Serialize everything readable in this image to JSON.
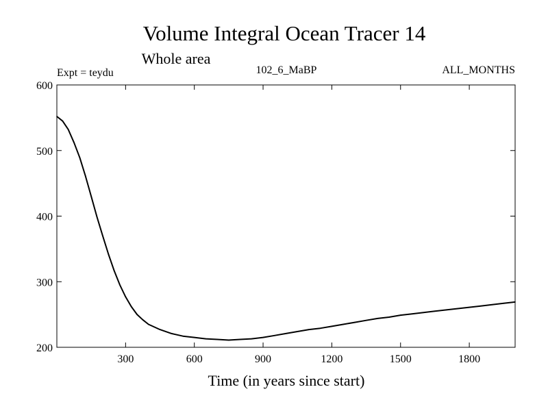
{
  "chart_data": {
    "type": "line",
    "title": "Volume Integral Ocean Tracer 14",
    "subtitle": "Whole area",
    "annotations": {
      "left": "Expt = teydu",
      "center": "102_6_MaBP",
      "right": "ALL_MONTHS"
    },
    "xlabel": "Time (in years since start)",
    "ylabel": "",
    "xlim": [
      0,
      2000
    ],
    "ylim": [
      200,
      600
    ],
    "x_ticks": [
      300,
      600,
      900,
      1200,
      1500,
      1800
    ],
    "x_tick_labels": [
      "300",
      "600",
      "900",
      "1200",
      "1500",
      "1800"
    ],
    "y_ticks": [
      200,
      300,
      400,
      500,
      600
    ],
    "y_tick_labels": [
      "200",
      "300",
      "400",
      "500",
      "600"
    ],
    "grid": false,
    "series": [
      {
        "name": "Ocean Tracer 14",
        "color": "#000000",
        "x": [
          0,
          25,
          50,
          75,
          100,
          125,
          150,
          175,
          200,
          225,
          250,
          275,
          300,
          325,
          350,
          375,
          400,
          450,
          500,
          550,
          600,
          650,
          700,
          750,
          800,
          850,
          900,
          950,
          1000,
          1050,
          1100,
          1150,
          1200,
          1250,
          1300,
          1350,
          1400,
          1450,
          1500,
          1550,
          1600,
          1650,
          1700,
          1750,
          1800,
          1850,
          1900,
          1950,
          2000
        ],
        "y": [
          552,
          545,
          532,
          512,
          489,
          461,
          430,
          399,
          370,
          342,
          317,
          295,
          277,
          262,
          250,
          242,
          235,
          227,
          221,
          217,
          215,
          213,
          212,
          211,
          212,
          213,
          215,
          218,
          221,
          224,
          227,
          229,
          232,
          235,
          238,
          241,
          244,
          246,
          249,
          251,
          253,
          255,
          257,
          259,
          261,
          263,
          265,
          267,
          269
        ]
      }
    ]
  }
}
